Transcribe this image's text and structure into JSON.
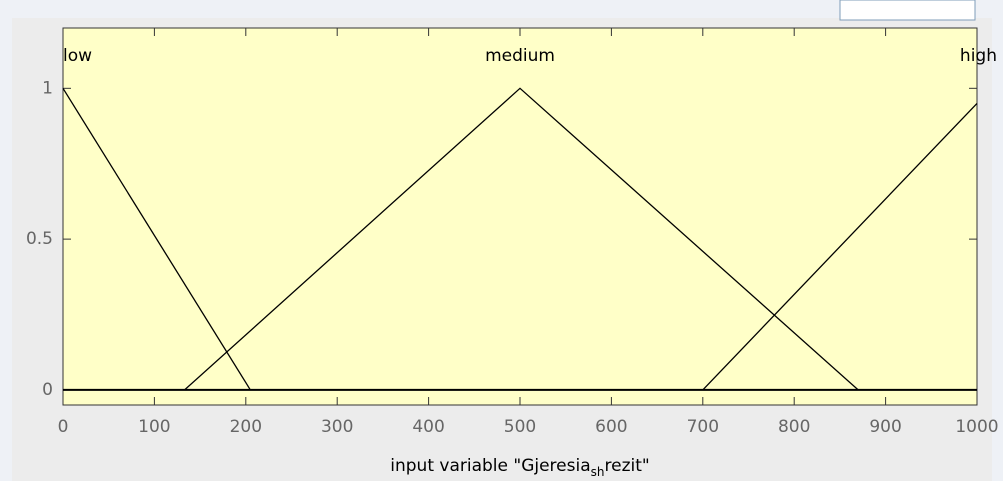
{
  "chart_data": {
    "type": "line",
    "xlabel": [
      "input variable \"Gjeresia",
      "sh",
      "rezit\""
    ],
    "series": [
      {
        "name": "low",
        "color": "#000000",
        "x": [
          0,
          205
        ],
        "values": [
          1,
          0
        ]
      },
      {
        "name": "medium",
        "color": "#000000",
        "x": [
          133,
          500,
          870
        ],
        "values": [
          0,
          1,
          0
        ]
      },
      {
        "name": "high",
        "color": "#000000",
        "x": [
          700,
          1000
        ],
        "values": [
          0,
          0.95
        ]
      }
    ],
    "xlim": [
      0,
      1000
    ],
    "xticks": [
      0,
      100,
      200,
      300,
      400,
      500,
      600,
      700,
      800,
      900,
      1000
    ],
    "ylim": [
      -0.05,
      1.2
    ],
    "yticks": [
      0,
      0.5,
      1
    ]
  }
}
